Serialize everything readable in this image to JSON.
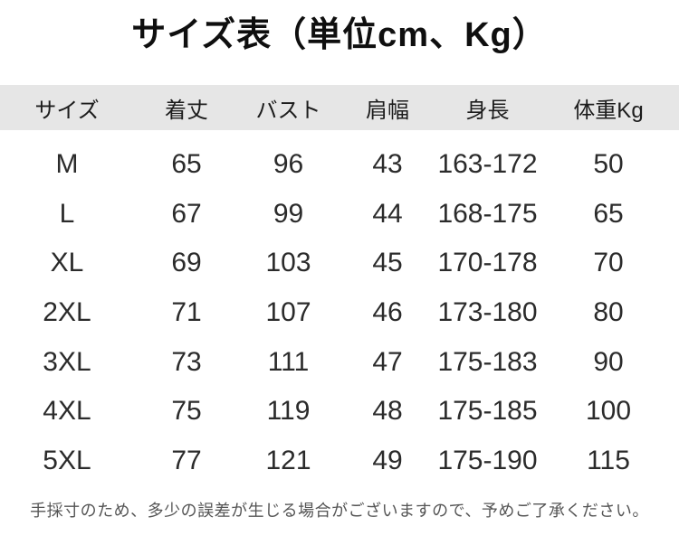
{
  "title": "サイズ表（単位cm、Kg）",
  "table": {
    "columns": [
      "サイズ",
      "着丈",
      "バスト",
      "肩幅",
      "身長",
      "体重Kg"
    ],
    "rows": [
      [
        "M",
        "65",
        "96",
        "43",
        "163-172",
        "50"
      ],
      [
        "L",
        "67",
        "99",
        "44",
        "168-175",
        "65"
      ],
      [
        "XL",
        "69",
        "103",
        "45",
        "170-178",
        "70"
      ],
      [
        "2XL",
        "71",
        "107",
        "46",
        "173-180",
        "80"
      ],
      [
        "3XL",
        "73",
        "111",
        "47",
        "175-183",
        "90"
      ],
      [
        "4XL",
        "75",
        "119",
        "48",
        "175-185",
        "100"
      ],
      [
        "5XL",
        "77",
        "121",
        "49",
        "175-190",
        "115"
      ]
    ]
  },
  "footer_note": "手採寸のため、多少の誤差が生じる場合がございますので、予めご了承ください。",
  "colors": {
    "page_background": "#ffffff",
    "header_background": "#e6e6e6",
    "title_text": "#0f0f0f",
    "body_text": "#2b2b2b",
    "note_text": "#555555"
  }
}
